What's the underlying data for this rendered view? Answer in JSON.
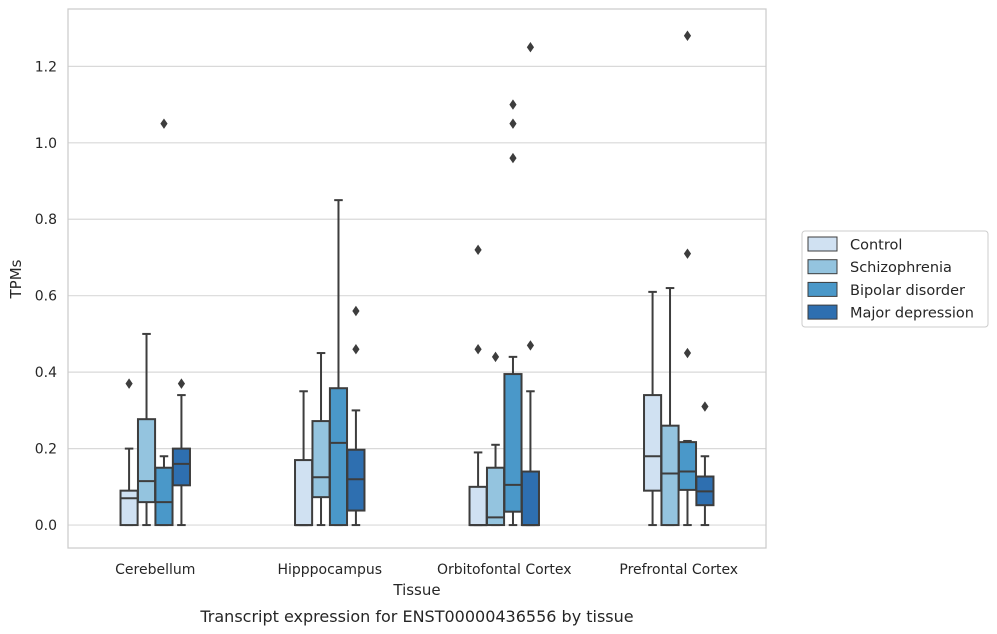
{
  "chart_data": {
    "type": "box",
    "xlabel": "Tissue",
    "ylabel": "TPMs",
    "caption": "Transcript expression for ENST00000436556 by tissue",
    "ylim": [
      -0.06,
      1.35
    ],
    "yticks": [
      "0.0",
      "0.2",
      "0.4",
      "0.6",
      "0.8",
      "1.0",
      "1.2"
    ],
    "grid": "horizontal",
    "legend_position": "right",
    "categories": [
      "Cerebellum",
      "Hipppocampus",
      "Orbitofontal Cortex",
      "Prefrontal Cortex"
    ],
    "colors": {
      "Control": "#d0e1f2",
      "Schizophrenia": "#94c4df",
      "Bipolar disorder": "#4a98c9",
      "Major depression": "#2e6fb0",
      "edge": "#3d3d3d",
      "grid": "#d9d9d9"
    },
    "series": [
      {
        "name": "Control",
        "boxes": [
          {
            "whislo": 0.0,
            "q1": 0.0,
            "med": 0.07,
            "q3": 0.09,
            "whishi": 0.2,
            "fliers": [
              0.37
            ]
          },
          {
            "whislo": 0.0,
            "q1": 0.0,
            "med": 0.0,
            "q3": 0.17,
            "whishi": 0.35,
            "fliers": []
          },
          {
            "whislo": 0.0,
            "q1": 0.0,
            "med": 0.0,
            "q3": 0.1,
            "whishi": 0.19,
            "fliers": [
              0.46,
              0.72
            ]
          },
          {
            "whislo": 0.0,
            "q1": 0.09,
            "med": 0.18,
            "q3": 0.34,
            "whishi": 0.61,
            "fliers": []
          }
        ]
      },
      {
        "name": "Schizophrenia",
        "boxes": [
          {
            "whislo": 0.0,
            "q1": 0.06,
            "med": 0.115,
            "q3": 0.277,
            "whishi": 0.5,
            "fliers": []
          },
          {
            "whislo": 0.0,
            "q1": 0.073,
            "med": 0.125,
            "q3": 0.272,
            "whishi": 0.45,
            "fliers": []
          },
          {
            "whislo": 0.0,
            "q1": 0.0,
            "med": 0.02,
            "q3": 0.15,
            "whishi": 0.21,
            "fliers": [
              0.44
            ]
          },
          {
            "whislo": 0.0,
            "q1": 0.0,
            "med": 0.135,
            "q3": 0.26,
            "whishi": 0.62,
            "fliers": []
          }
        ]
      },
      {
        "name": "Bipolar disorder",
        "boxes": [
          {
            "whislo": 0.0,
            "q1": 0.0,
            "med": 0.06,
            "q3": 0.15,
            "whishi": 0.18,
            "fliers": [
              1.05
            ]
          },
          {
            "whislo": 0.0,
            "q1": 0.0,
            "med": 0.215,
            "q3": 0.358,
            "whishi": 0.85,
            "fliers": []
          },
          {
            "whislo": 0.0,
            "q1": 0.035,
            "med": 0.105,
            "q3": 0.395,
            "whishi": 0.44,
            "fliers": [
              0.96,
              1.05,
              1.1
            ]
          },
          {
            "whislo": 0.0,
            "q1": 0.092,
            "med": 0.14,
            "q3": 0.217,
            "whishi": 0.22,
            "fliers": [
              0.45,
              0.71,
              1.28
            ]
          }
        ]
      },
      {
        "name": "Major depression",
        "boxes": [
          {
            "whislo": 0.0,
            "q1": 0.104,
            "med": 0.16,
            "q3": 0.2,
            "whishi": 0.34,
            "fliers": [
              0.37
            ]
          },
          {
            "whislo": 0.0,
            "q1": 0.038,
            "med": 0.12,
            "q3": 0.197,
            "whishi": 0.3,
            "fliers": [
              0.46,
              0.56
            ]
          },
          {
            "whislo": 0.0,
            "q1": 0.0,
            "med": 0.0,
            "q3": 0.14,
            "whishi": 0.35,
            "fliers": [
              0.47,
              1.25
            ]
          },
          {
            "whislo": 0.0,
            "q1": 0.052,
            "med": 0.088,
            "q3": 0.127,
            "whishi": 0.18,
            "fliers": [
              0.31
            ]
          }
        ]
      }
    ]
  }
}
